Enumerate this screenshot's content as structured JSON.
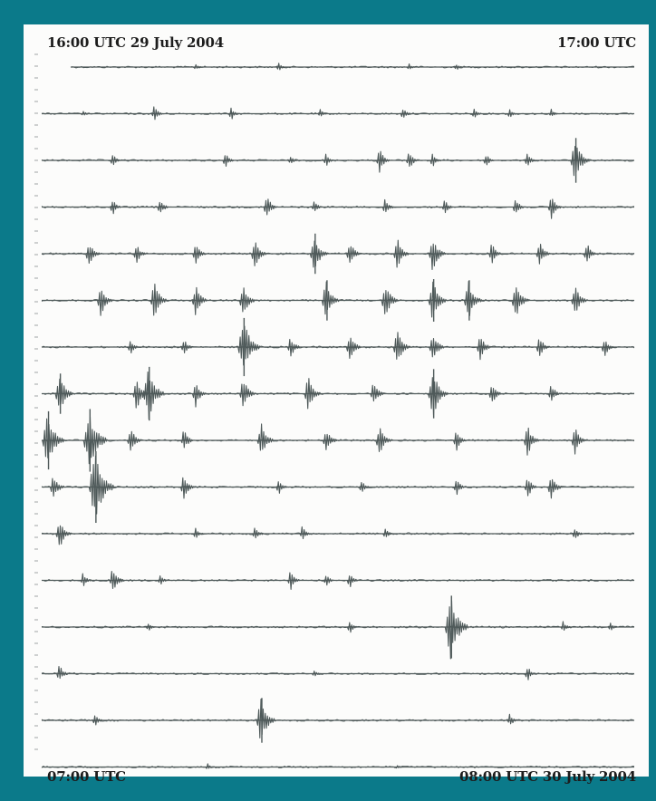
{
  "labels": {
    "top_left": "16:00 UTC 29 July 2004",
    "top_right": "17:00 UTC",
    "bottom_left": "07:00 UTC",
    "bottom_right": "08:00 UTC 30 July 2004"
  },
  "colors": {
    "background": "#0b7a8a",
    "panel": "#fcfcfb",
    "trace": "#4f5a5a"
  },
  "chart_data": {
    "type": "seismogram",
    "title": "",
    "xlabel": "",
    "ylabel": "",
    "row_count": 16,
    "row_minutes": 60,
    "start_label": "16:00 UTC 29 July 2004",
    "end_label": "08:00 UTC 30 July 2004",
    "grid": false,
    "rows": [
      {
        "hour": "16:00 UTC",
        "events": [
          [
            26,
            0.15
          ],
          [
            40,
            0.18
          ],
          [
            62,
            0.15
          ],
          [
            70,
            0.15
          ]
        ]
      },
      {
        "hour": "17:00 UTC",
        "events": [
          [
            7,
            0.12
          ],
          [
            19,
            0.35
          ],
          [
            32,
            0.3
          ],
          [
            47,
            0.2
          ],
          [
            61,
            0.3
          ],
          [
            73,
            0.25
          ],
          [
            79,
            0.22
          ],
          [
            86,
            0.2
          ]
        ]
      },
      {
        "hour": "18:00 UTC",
        "events": [
          [
            12,
            0.3
          ],
          [
            31,
            0.35
          ],
          [
            42,
            0.2
          ],
          [
            48,
            0.3
          ],
          [
            57,
            0.55
          ],
          [
            62,
            0.45
          ],
          [
            66,
            0.35
          ],
          [
            75,
            0.3
          ],
          [
            82,
            0.35
          ],
          [
            90,
            1.0
          ]
        ]
      },
      {
        "hour": "19:00 UTC",
        "events": [
          [
            12,
            0.35
          ],
          [
            20,
            0.4
          ],
          [
            38,
            0.55
          ],
          [
            46,
            0.3
          ],
          [
            58,
            0.4
          ],
          [
            68,
            0.35
          ],
          [
            80,
            0.4
          ],
          [
            86,
            0.55
          ]
        ]
      },
      {
        "hour": "20:00 UTC",
        "events": [
          [
            8,
            0.6
          ],
          [
            16,
            0.45
          ],
          [
            26,
            0.5
          ],
          [
            36,
            0.7
          ],
          [
            46,
            0.9
          ],
          [
            52,
            0.6
          ],
          [
            60,
            0.7
          ],
          [
            66,
            0.8
          ],
          [
            76,
            0.5
          ],
          [
            84,
            0.6
          ],
          [
            92,
            0.5
          ]
        ]
      },
      {
        "hour": "21:00 UTC",
        "events": [
          [
            10,
            0.7
          ],
          [
            19,
            0.8
          ],
          [
            26,
            0.7
          ],
          [
            34,
            0.75
          ],
          [
            48,
            0.9
          ],
          [
            58,
            0.8
          ],
          [
            66,
            0.95
          ],
          [
            72,
            0.9
          ],
          [
            80,
            0.8
          ],
          [
            90,
            0.7
          ]
        ]
      },
      {
        "hour": "22:00 UTC",
        "events": [
          [
            15,
            0.35
          ],
          [
            24,
            0.4
          ],
          [
            34,
            1.3
          ],
          [
            42,
            0.5
          ],
          [
            52,
            0.65
          ],
          [
            60,
            0.8
          ],
          [
            66,
            0.7
          ],
          [
            74,
            0.6
          ],
          [
            84,
            0.5
          ],
          [
            95,
            0.45
          ]
        ]
      },
      {
        "hour": "23:00 UTC",
        "events": [
          [
            3,
            0.9
          ],
          [
            16,
            0.75
          ],
          [
            18,
            1.2
          ],
          [
            26,
            0.6
          ],
          [
            34,
            0.7
          ],
          [
            45,
            0.8
          ],
          [
            56,
            0.55
          ],
          [
            66,
            1.1
          ],
          [
            76,
            0.5
          ],
          [
            86,
            0.45
          ]
        ]
      },
      {
        "hour": "00:00 UTC",
        "events": [
          [
            1,
            1.3
          ],
          [
            8,
            1.4
          ],
          [
            15,
            0.6
          ],
          [
            24,
            0.5
          ],
          [
            37,
            0.8
          ],
          [
            48,
            0.6
          ],
          [
            57,
            0.7
          ],
          [
            70,
            0.5
          ],
          [
            82,
            0.7
          ],
          [
            90,
            0.6
          ]
        ]
      },
      {
        "hour": "01:00 UTC",
        "events": [
          [
            2,
            0.6
          ],
          [
            9,
            1.6
          ],
          [
            24,
            0.6
          ],
          [
            40,
            0.35
          ],
          [
            54,
            0.3
          ],
          [
            70,
            0.4
          ],
          [
            82,
            0.5
          ],
          [
            86,
            0.6
          ]
        ]
      },
      {
        "hour": "02:00 UTC",
        "events": [
          [
            3,
            0.7
          ],
          [
            26,
            0.25
          ],
          [
            36,
            0.35
          ],
          [
            44,
            0.35
          ],
          [
            58,
            0.25
          ],
          [
            90,
            0.3
          ]
        ]
      },
      {
        "hour": "03:00 UTC",
        "events": [
          [
            7,
            0.35
          ],
          [
            12,
            0.6
          ],
          [
            20,
            0.25
          ],
          [
            42,
            0.45
          ],
          [
            48,
            0.3
          ],
          [
            52,
            0.35
          ]
        ]
      },
      {
        "hour": "04:00 UTC",
        "events": [
          [
            18,
            0.2
          ],
          [
            52,
            0.3
          ],
          [
            69,
            1.4
          ],
          [
            88,
            0.25
          ],
          [
            96,
            0.2
          ]
        ]
      },
      {
        "hour": "05:00 UTC",
        "events": [
          [
            3,
            0.4
          ],
          [
            46,
            0.2
          ],
          [
            82,
            0.35
          ]
        ]
      },
      {
        "hour": "06:00 UTC",
        "events": [
          [
            9,
            0.3
          ],
          [
            37,
            1.0
          ],
          [
            79,
            0.3
          ]
        ]
      },
      {
        "hour": "07:00 UTC",
        "events": [
          [
            28,
            0.15
          ],
          [
            60,
            0.1
          ]
        ]
      }
    ]
  }
}
